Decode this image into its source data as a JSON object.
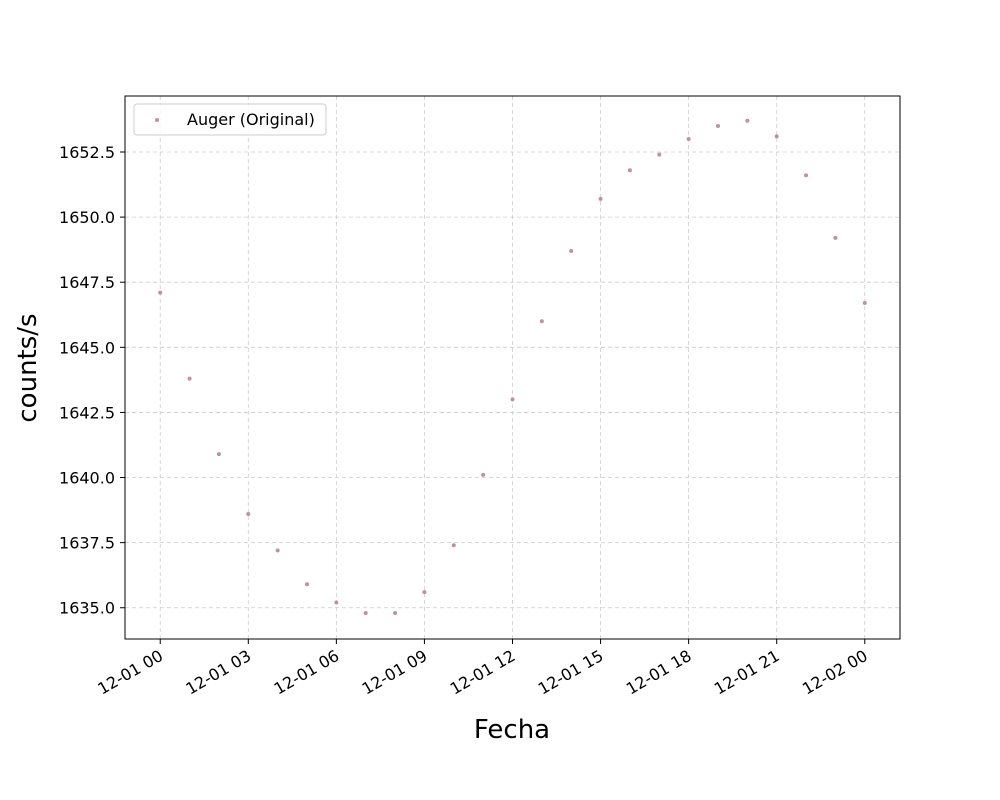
{
  "chart_data": {
    "type": "scatter",
    "xlabel": "Fecha",
    "ylabel": "counts/s",
    "x_tick_labels": [
      "12-01 00",
      "12-01 03",
      "12-01 06",
      "12-01 09",
      "12-01 12",
      "12-01 15",
      "12-01 18",
      "12-01 21",
      "12-02 00"
    ],
    "x_tick_hours": [
      0,
      3,
      6,
      9,
      12,
      15,
      18,
      21,
      24
    ],
    "xlim_hours": [
      -1.2,
      25.2
    ],
    "y_ticks": [
      1635.0,
      1637.5,
      1640.0,
      1642.5,
      1645.0,
      1647.5,
      1650.0,
      1652.5
    ],
    "y_tick_labels": [
      "1635.0",
      "1637.5",
      "1640.0",
      "1642.5",
      "1645.0",
      "1647.5",
      "1650.0",
      "1652.5"
    ],
    "ylim": [
      1633.8,
      1654.65
    ],
    "grid": true,
    "legend_position": "top-left",
    "series": [
      {
        "name": "Auger (Original)",
        "color": "#c48f9e",
        "x_hours": [
          0,
          1,
          2,
          3,
          4,
          5,
          6,
          7,
          8,
          9,
          10,
          11,
          12,
          13,
          14,
          15,
          16,
          17,
          18,
          19,
          20,
          21,
          22,
          23,
          24
        ],
        "values": [
          1647.1,
          1643.8,
          1640.9,
          1638.6,
          1637.2,
          1635.9,
          1635.2,
          1634.8,
          1634.8,
          1635.6,
          1637.4,
          1640.1,
          1643.0,
          1646.0,
          1648.7,
          1650.7,
          1651.8,
          1652.4,
          1653.0,
          1653.5,
          1653.7,
          1653.1,
          1651.6,
          1649.2,
          1646.7
        ]
      }
    ]
  }
}
